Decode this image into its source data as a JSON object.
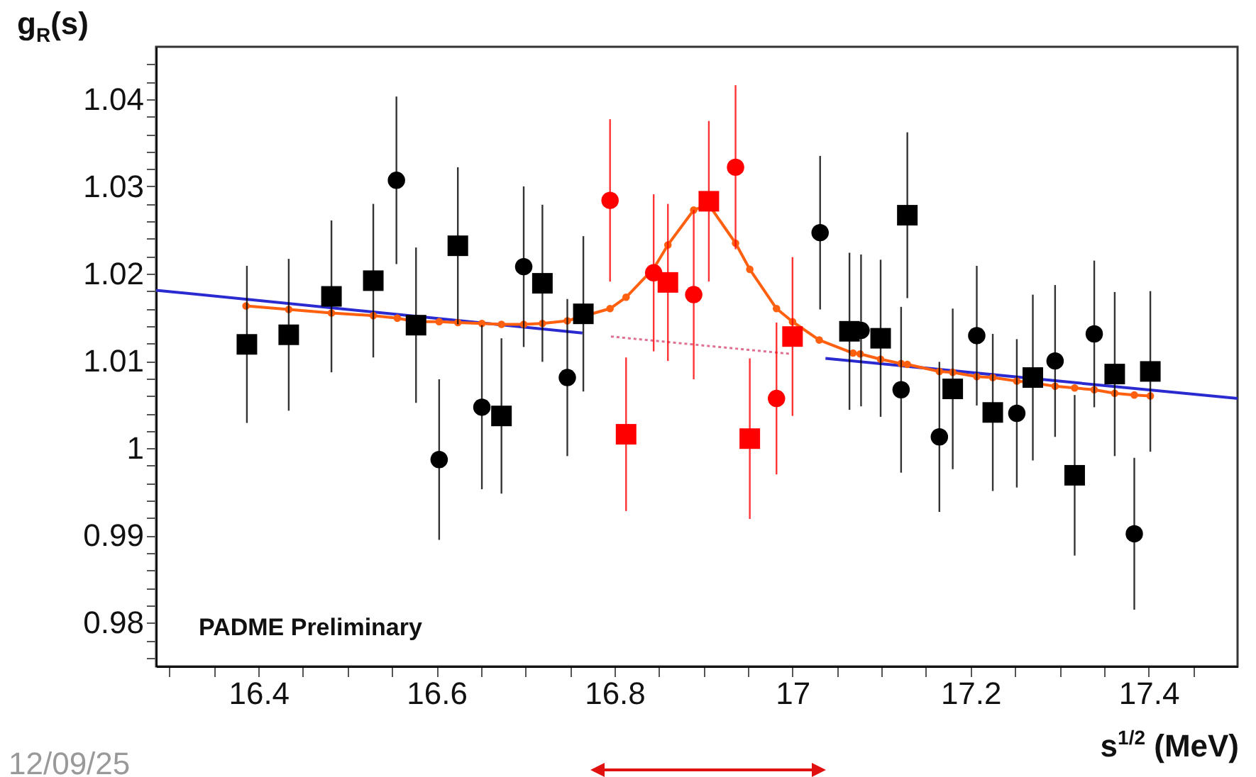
{
  "chart_data": {
    "type": "scatter",
    "xlabel": "s$^{1/2}$ (MeV)",
    "ylabel": "g$_{R}$(s)",
    "annotations": [
      "PADME Preliminary",
      "12/09/25"
    ],
    "xlim": [
      16.285,
      17.5
    ],
    "ylim": [
      0.975,
      1.046
    ],
    "xticks": [
      {
        "value": 16.3,
        "label": null
      },
      {
        "value": 16.35,
        "label": null
      },
      16.4,
      {
        "value": 16.45,
        "label": null
      },
      {
        "value": 16.5,
        "label": null
      },
      {
        "value": 16.55,
        "label": null
      },
      16.6,
      {
        "value": 16.65,
        "label": null
      },
      {
        "value": 16.7,
        "label": null
      },
      {
        "value": 16.75,
        "label": null
      },
      16.8,
      {
        "value": 16.85,
        "label": null
      },
      {
        "value": 16.9,
        "label": null
      },
      {
        "value": 16.95,
        "label": null
      },
      17,
      {
        "value": 17.05,
        "label": null
      },
      {
        "value": 17.1,
        "label": null
      },
      {
        "value": 17.15,
        "label": null
      },
      17.2,
      {
        "value": 17.25,
        "label": null
      },
      {
        "value": 17.3,
        "label": null
      },
      {
        "value": 17.35,
        "label": null
      },
      17.4,
      {
        "value": 17.45,
        "label": null
      }
    ],
    "yticks": [
      {
        "value": 0.976,
        "label": null
      },
      {
        "value": 0.978,
        "label": null
      },
      0.98,
      {
        "value": 0.982,
        "label": null
      },
      {
        "value": 0.984,
        "label": null
      },
      {
        "value": 0.986,
        "label": null
      },
      {
        "value": 0.988,
        "label": null
      },
      0.99,
      {
        "value": 0.992,
        "label": null
      },
      {
        "value": 0.994,
        "label": null
      },
      {
        "value": 0.996,
        "label": null
      },
      {
        "value": 0.998,
        "label": null
      },
      1,
      {
        "value": 1.002,
        "label": null
      },
      {
        "value": 1.004,
        "label": null
      },
      {
        "value": 1.006,
        "label": null
      },
      {
        "value": 1.008,
        "label": null
      },
      1.01,
      {
        "value": 1.012,
        "label": null
      },
      {
        "value": 1.014,
        "label": null
      },
      {
        "value": 1.016,
        "label": null
      },
      {
        "value": 1.018,
        "label": null
      },
      1.02,
      {
        "value": 1.022,
        "label": null
      },
      {
        "value": 1.024,
        "label": null
      },
      {
        "value": 1.026,
        "label": null
      },
      {
        "value": 1.028,
        "label": null
      },
      1.03,
      {
        "value": 1.032,
        "label": null
      },
      {
        "value": 1.034,
        "label": null
      },
      {
        "value": 1.036,
        "label": null
      },
      {
        "value": 1.038,
        "label": null
      },
      1.04,
      {
        "value": 1.042,
        "label": null
      },
      {
        "value": 1.044,
        "label": null
      }
    ],
    "series": [
      {
        "type": "line",
        "color": "#2a2ad0",
        "marker": "none",
        "line_style": "solid",
        "x": [
          16.285,
          16.764
        ],
        "values": [
          1.0181,
          1.0132
        ]
      },
      {
        "type": "line",
        "color": "#2a2ad0",
        "marker": "none",
        "line_style": "solid",
        "x": [
          17.037,
          17.5
        ],
        "values": [
          1.0103,
          1.0057
        ]
      },
      {
        "type": "line",
        "color": "#e07090",
        "marker": "none",
        "line_style": "dotted",
        "x": [
          16.796,
          16.999
        ],
        "values": [
          1.0128,
          1.0108
        ]
      },
      {
        "type": "line",
        "color": "#ff6010",
        "marker": "circle",
        "line_style": "solid",
        "x": [
          16.386,
          16.434,
          16.482,
          16.529,
          16.556,
          16.577,
          16.603,
          16.624,
          16.651,
          16.673,
          16.698,
          16.719,
          16.747,
          16.795,
          16.813,
          16.844,
          16.86,
          16.889,
          16.906,
          16.936,
          16.952,
          16.982,
          17.0,
          17.03,
          17.068,
          17.076,
          17.099,
          17.122,
          17.129,
          17.165,
          17.18,
          17.207,
          17.225,
          17.252,
          17.27,
          17.295,
          17.317,
          17.339,
          17.362,
          17.384,
          17.402
        ],
        "values": [
          1.0163,
          1.0159,
          1.0155,
          1.0152,
          1.0149,
          1.0145,
          1.0145,
          1.0144,
          1.0143,
          1.0142,
          1.0142,
          1.0143,
          1.0146,
          1.016,
          1.0173,
          1.0206,
          1.0233,
          1.0273,
          1.0279,
          1.0235,
          1.0205,
          1.016,
          1.0145,
          1.0124,
          1.0109,
          1.0108,
          1.0102,
          1.0097,
          1.0096,
          1.0088,
          1.0087,
          1.0082,
          1.0081,
          1.0077,
          1.0075,
          1.0071,
          1.0069,
          1.0067,
          1.0063,
          1.0061,
          1.006
        ]
      },
      {
        "color": "#000000",
        "marker": "square",
        "x": [
          16.387,
          16.434,
          16.482,
          16.529,
          16.577,
          16.624,
          16.673,
          16.719,
          16.765,
          17.064,
          17.099,
          17.129,
          17.18,
          17.225,
          17.27,
          17.317,
          17.362,
          17.402
        ],
        "values": [
          1.0119,
          1.013,
          1.0174,
          1.0192,
          1.0141,
          1.0232,
          1.0037,
          1.0189,
          1.0154,
          1.0134,
          1.0126,
          1.0267,
          1.0068,
          1.0041,
          1.0081,
          0.9969,
          1.0085,
          1.0088
        ],
        "errors": [
          0.009,
          0.0087,
          0.0087,
          0.0088,
          0.0089,
          0.009,
          0.0089,
          0.009,
          0.0089,
          0.009,
          0.009,
          0.0095,
          0.0092,
          0.009,
          0.0095,
          0.0092,
          0.0094,
          0.0092
        ]
      },
      {
        "color": "#000000",
        "marker": "circle",
        "x": [
          16.555,
          16.603,
          16.651,
          16.698,
          16.747,
          17.031,
          17.077,
          17.122,
          17.165,
          17.207,
          17.252,
          17.295,
          17.339,
          17.384
        ],
        "values": [
          1.0307,
          0.9987,
          1.0047,
          1.0208,
          1.0081,
          1.0247,
          1.0135,
          1.0067,
          1.0013,
          1.0129,
          1.004,
          1.01,
          1.0131,
          0.9902
        ],
        "errors": [
          0.0096,
          0.0092,
          0.0094,
          0.0092,
          0.009,
          0.0088,
          0.0087,
          0.0095,
          0.0086,
          0.008,
          0.0085,
          0.0087,
          0.0084,
          0.0087
        ]
      },
      {
        "color": "#ff0000",
        "marker": "square",
        "x": [
          16.813,
          16.86,
          16.906,
          16.952,
          17.0
        ],
        "values": [
          1.0016,
          1.019,
          1.0283,
          1.0011,
          1.0128
        ],
        "errors": [
          0.0088,
          0.009,
          0.0092,
          0.0092,
          0.0091
        ]
      },
      {
        "color": "#ff0000",
        "marker": "circle",
        "x": [
          16.795,
          16.844,
          16.889,
          16.936,
          16.982
        ],
        "values": [
          1.0284,
          1.0201,
          1.0176,
          1.0322,
          1.0057
        ],
        "errors": [
          0.0093,
          0.009,
          0.0097,
          0.0094,
          0.0087
        ]
      }
    ]
  }
}
